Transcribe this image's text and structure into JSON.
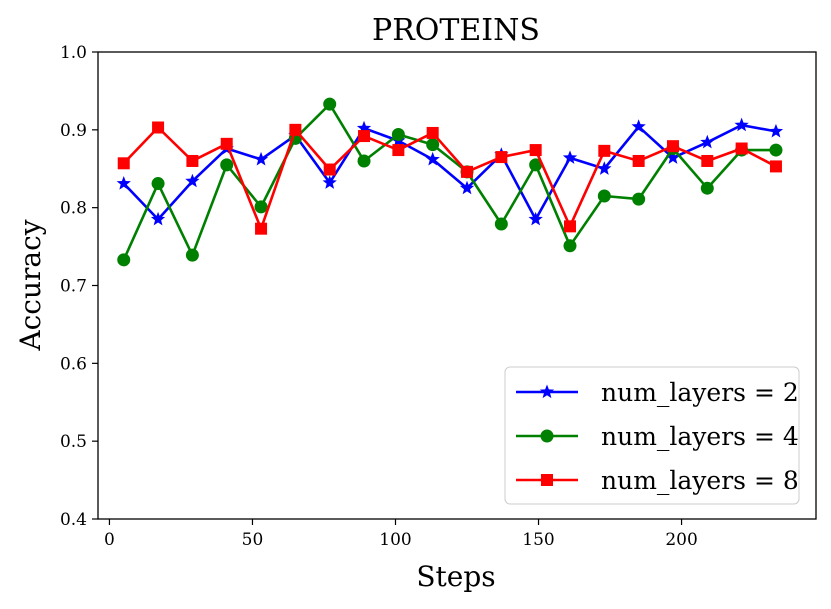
{
  "chart_data": {
    "type": "line",
    "title": "PROTEINS",
    "xlabel": "Steps",
    "ylabel": "Accuracy",
    "xlim": [
      -4,
      247
    ],
    "ylim": [
      0.4,
      1.0
    ],
    "xticks": [
      0,
      50,
      100,
      150,
      200
    ],
    "yticks": [
      0.4,
      0.5,
      0.6,
      0.7,
      0.8,
      0.9,
      1.0
    ],
    "xtick_labels": [
      "0",
      "50",
      "100",
      "150",
      "200"
    ],
    "ytick_labels": [
      "0.4",
      "0.5",
      "0.6",
      "0.7",
      "0.8",
      "0.9",
      "1.0"
    ],
    "grid": false,
    "legend_position": "bottom-right",
    "x": [
      5,
      17,
      29,
      41,
      53,
      65,
      77,
      89,
      101,
      113,
      125,
      137,
      149,
      161,
      173,
      185,
      197,
      209,
      221,
      233
    ],
    "series": [
      {
        "name": "num_layers = 2",
        "color": "#0000ff",
        "marker": "star",
        "values": [
          0.831,
          0.785,
          0.834,
          0.876,
          0.862,
          0.893,
          0.832,
          0.902,
          0.886,
          0.862,
          0.825,
          0.868,
          0.785,
          0.864,
          0.85,
          0.904,
          0.864,
          0.884,
          0.906,
          0.898
        ]
      },
      {
        "name": "num_layers = 4",
        "color": "#008000",
        "marker": "circle",
        "values": [
          0.733,
          0.831,
          0.739,
          0.855,
          0.801,
          0.889,
          0.933,
          0.86,
          0.894,
          0.881,
          0.846,
          0.779,
          0.855,
          0.751,
          0.815,
          0.811,
          0.876,
          0.825,
          0.874,
          0.874
        ]
      },
      {
        "name": "num_layers = 8",
        "color": "#ff0000",
        "marker": "square",
        "values": [
          0.857,
          0.903,
          0.86,
          0.882,
          0.773,
          0.9,
          0.849,
          0.892,
          0.874,
          0.896,
          0.846,
          0.865,
          0.874,
          0.776,
          0.873,
          0.86,
          0.879,
          0.86,
          0.876,
          0.853
        ]
      }
    ]
  }
}
